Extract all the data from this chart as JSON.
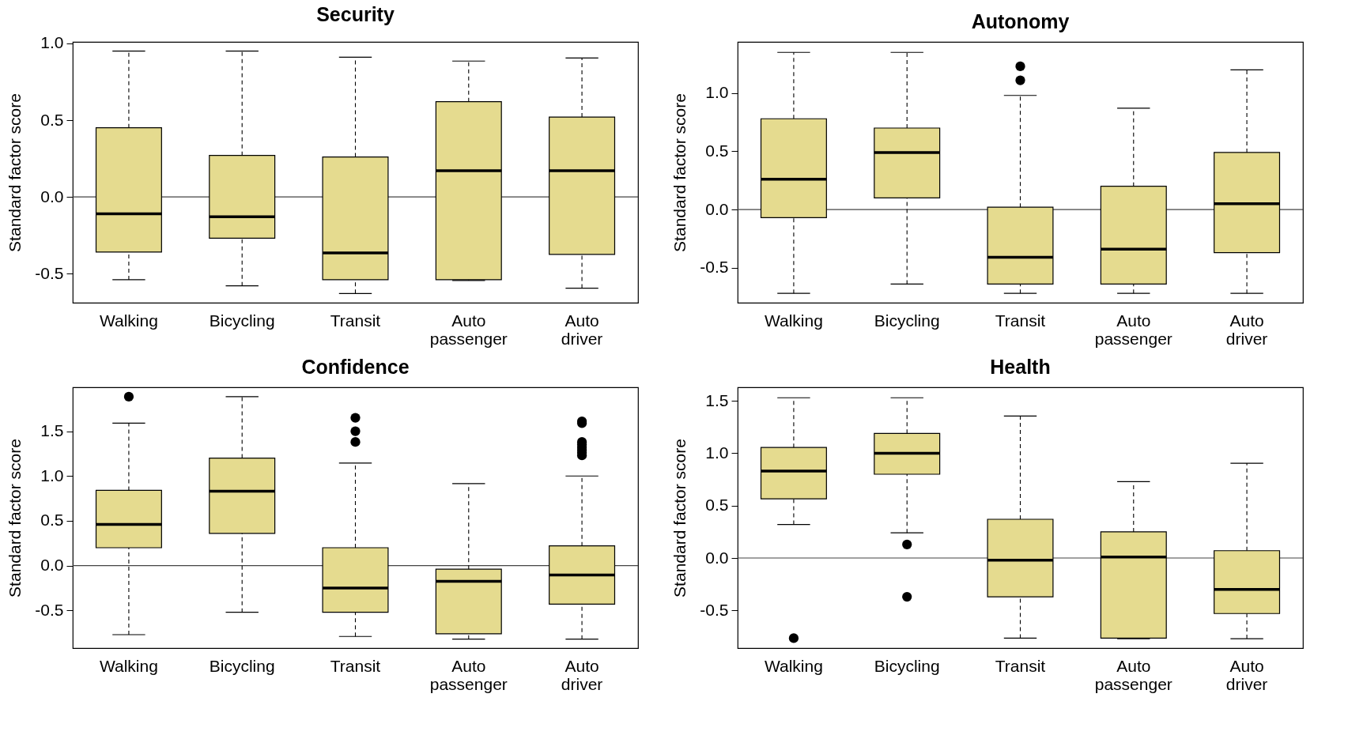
{
  "chart_data": [
    {
      "type": "box",
      "title": "Security",
      "ylabel": "Standard factor score",
      "categories": [
        "Walking",
        "Bicycling",
        "Transit",
        "Auto passenger",
        "Auto driver"
      ],
      "ylim": [
        -0.69,
        1.01
      ],
      "yticks": [
        {
          "value": -0.5,
          "label": "-0.5"
        },
        {
          "value": 0,
          "label": "0.0"
        },
        {
          "value": 0.5,
          "label": "0.5"
        },
        {
          "value": 1,
          "label": "1.0"
        }
      ],
      "grid": false,
      "ref_lines": [
        {
          "axis": "y",
          "value": 0,
          "label": null
        }
      ],
      "series": [
        {
          "color": "#e5db8f",
          "boxes": [
            {
              "low": -0.54,
              "q1": -0.36,
              "median": -0.11,
              "q3": 0.45,
              "high": 0.95
            },
            {
              "low": -0.58,
              "q1": -0.27,
              "median": -0.13,
              "q3": 0.27,
              "high": 0.95
            },
            {
              "low": -0.63,
              "q1": -0.54,
              "median": -0.365,
              "q3": 0.26,
              "high": 0.91
            },
            {
              "low": -0.545,
              "q1": -0.54,
              "median": 0.17,
              "q3": 0.62,
              "high": 0.885
            },
            {
              "low": -0.595,
              "q1": -0.375,
              "median": 0.17,
              "q3": 0.52,
              "high": 0.905
            }
          ]
        }
      ]
    },
    {
      "type": "box",
      "title": "Autonomy",
      "ylabel": "Standard factor score",
      "categories": [
        "Walking",
        "Bicycling",
        "Transit",
        "Auto passenger",
        "Auto driver"
      ],
      "ylim": [
        -0.8,
        1.44
      ],
      "yticks": [
        {
          "value": -0.5,
          "label": "-0.5"
        },
        {
          "value": 0,
          "label": "0.0"
        },
        {
          "value": 0.5,
          "label": "0.5"
        },
        {
          "value": 1,
          "label": "1.0"
        }
      ],
      "grid": false,
      "ref_lines": [
        {
          "axis": "y",
          "value": 0,
          "label": null
        }
      ],
      "series": [
        {
          "color": "#e5db8f",
          "boxes": [
            {
              "low": -0.72,
              "q1": -0.07,
              "median": 0.26,
              "q3": 0.78,
              "high": 1.35
            },
            {
              "low": -0.64,
              "q1": 0.1,
              "median": 0.49,
              "q3": 0.7,
              "high": 1.35
            },
            {
              "low": -0.72,
              "q1": -0.64,
              "median": -0.41,
              "q3": 0.02,
              "high": 0.98,
              "outliers": [
                1.23,
                1.11
              ]
            },
            {
              "low": -0.72,
              "q1": -0.64,
              "median": -0.34,
              "q3": 0.2,
              "high": 0.87
            },
            {
              "low": -0.72,
              "q1": -0.37,
              "median": 0.05,
              "q3": 0.49,
              "high": 1.2
            }
          ]
        }
      ]
    },
    {
      "type": "box",
      "title": "Confidence",
      "ylabel": "Standard factor score",
      "categories": [
        "Walking",
        "Bicycling",
        "Transit",
        "Auto passenger",
        "Auto driver"
      ],
      "ylim": [
        -0.92,
        1.99
      ],
      "yticks": [
        {
          "value": -0.5,
          "label": "-0.5"
        },
        {
          "value": 0,
          "label": "0.0"
        },
        {
          "value": 0.5,
          "label": "0.5"
        },
        {
          "value": 1,
          "label": "1.0"
        },
        {
          "value": 1.5,
          "label": "1.5"
        }
      ],
      "grid": false,
      "ref_lines": [
        {
          "axis": "y",
          "value": 0,
          "label": null
        }
      ],
      "series": [
        {
          "color": "#e5db8f",
          "boxes": [
            {
              "low": -0.77,
              "q1": 0.2,
              "median": 0.46,
              "q3": 0.84,
              "high": 1.59,
              "outliers": [
                1.885
              ]
            },
            {
              "low": -0.52,
              "q1": 0.36,
              "median": 0.83,
              "q3": 1.2,
              "high": 1.885
            },
            {
              "low": -0.79,
              "q1": -0.52,
              "median": -0.25,
              "q3": 0.2,
              "high": 1.145,
              "outliers": [
                1.65,
                1.5,
                1.38
              ]
            },
            {
              "low": -0.82,
              "q1": -0.76,
              "median": -0.175,
              "q3": -0.04,
              "high": 0.915
            },
            {
              "low": -0.82,
              "q1": -0.43,
              "median": -0.105,
              "q3": 0.22,
              "high": 1.0,
              "outliers": [
                1.61,
                1.59,
                1.38,
                1.35,
                1.32,
                1.29,
                1.26,
                1.23
              ]
            }
          ]
        }
      ]
    },
    {
      "type": "box",
      "title": "Health",
      "ylabel": "Standard factor score",
      "categories": [
        "Walking",
        "Bicycling",
        "Transit",
        "Auto passenger",
        "Auto driver"
      ],
      "ylim": [
        -0.86,
        1.63
      ],
      "yticks": [
        {
          "value": -0.5,
          "label": "-0.5"
        },
        {
          "value": 0,
          "label": "0.0"
        },
        {
          "value": 0.5,
          "label": "0.5"
        },
        {
          "value": 1,
          "label": "1.0"
        },
        {
          "value": 1.5,
          "label": "1.5"
        }
      ],
      "grid": false,
      "ref_lines": [
        {
          "axis": "y",
          "value": 0,
          "label": null
        }
      ],
      "series": [
        {
          "color": "#e5db8f",
          "boxes": [
            {
              "low": 0.32,
              "q1": 0.565,
              "median": 0.83,
              "q3": 1.055,
              "high": 1.53,
              "outliers": [
                -0.765
              ]
            },
            {
              "low": 0.24,
              "q1": 0.8,
              "median": 1.0,
              "q3": 1.19,
              "high": 1.53,
              "outliers": [
                0.13,
                -0.37
              ]
            },
            {
              "low": -0.765,
              "q1": -0.37,
              "median": -0.02,
              "q3": 0.37,
              "high": 1.355
            },
            {
              "low": -0.77,
              "q1": -0.765,
              "median": 0.01,
              "q3": 0.25,
              "high": 0.73
            },
            {
              "low": -0.77,
              "q1": -0.53,
              "median": -0.3,
              "q3": 0.07,
              "high": 0.905
            }
          ]
        }
      ]
    }
  ]
}
